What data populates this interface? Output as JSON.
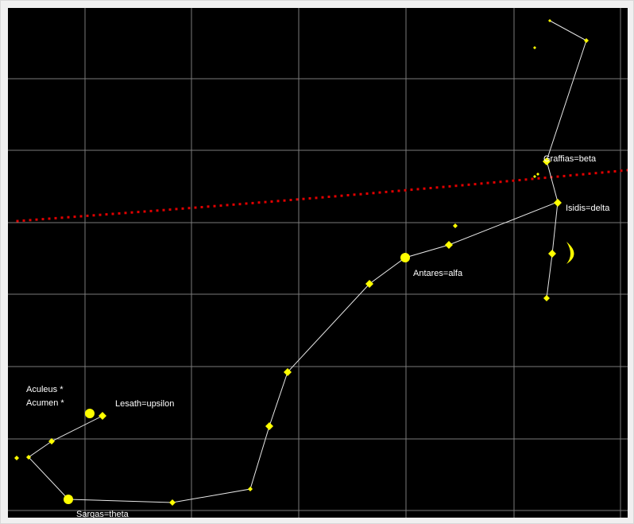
{
  "colors": {
    "sky": "#000000",
    "grid": "#7a7a7a",
    "ecliptic": "#e00000",
    "star": "#ffff00",
    "line": "#e8e8e8",
    "label": "#ffffff",
    "frame": "#f0f0f0"
  },
  "labels": {
    "graffias": "Graffias=beta",
    "isidis": "Isidis=delta",
    "antares": "Antares=alfa",
    "aculeus": "Aculeus *",
    "acumen": "Acumen *",
    "lesath": "Lesath=upsilon",
    "sargas": "Sargas=theta"
  }
}
